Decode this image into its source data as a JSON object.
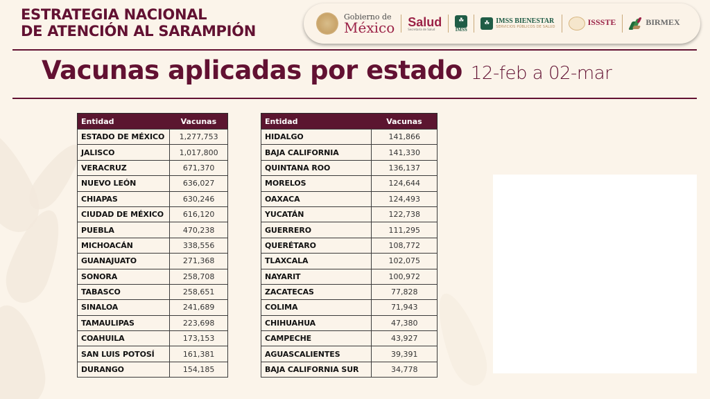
{
  "header": {
    "title_line1": "ESTRATEGIA NACIONAL",
    "title_line2": "DE ATENCIÓN AL SARAMPIÓN",
    "logos": {
      "gobierno_small": "Gobierno de",
      "gobierno_big": "México",
      "salud_big": "Salud",
      "salud_small": "Secretaría de Salud",
      "imss": "IMSS",
      "imss_bienestar_big": "IMSS BIENESTAR",
      "imss_bienestar_small": "SERVICIOS PÚBLICOS DE SALUD",
      "issste": "ISSSTE",
      "birmex": "BIRMEX"
    }
  },
  "page": {
    "title": "Vacunas aplicadas por estado",
    "date_range": "12-feb a 02-mar"
  },
  "colors": {
    "brand_primary": "#621132",
    "header_row": "#5b1630",
    "background": "#fbf4ea"
  },
  "table_left": {
    "headers": [
      "Entidad",
      "Vacunas"
    ],
    "rows": [
      {
        "entidad": "ESTADO DE MÉXICO",
        "vacunas": "1,277,753"
      },
      {
        "entidad": "JALISCO",
        "vacunas": "1,017,800"
      },
      {
        "entidad": "VERACRUZ",
        "vacunas": "671,370"
      },
      {
        "entidad": "NUEVO LEÓN",
        "vacunas": "636,027"
      },
      {
        "entidad": "CHIAPAS",
        "vacunas": "630,246"
      },
      {
        "entidad": "CIUDAD DE MÉXICO",
        "vacunas": "616,120"
      },
      {
        "entidad": "PUEBLA",
        "vacunas": "470,238"
      },
      {
        "entidad": "MICHOACÁN",
        "vacunas": "338,556"
      },
      {
        "entidad": "GUANAJUATO",
        "vacunas": "271,368"
      },
      {
        "entidad": "SONORA",
        "vacunas": "258,708"
      },
      {
        "entidad": "TABASCO",
        "vacunas": "258,651"
      },
      {
        "entidad": "SINALOA",
        "vacunas": "241,689"
      },
      {
        "entidad": "TAMAULIPAS",
        "vacunas": "223,698"
      },
      {
        "entidad": "COAHUILA",
        "vacunas": "173,153"
      },
      {
        "entidad": "SAN LUIS POTOSÍ",
        "vacunas": "161,381"
      },
      {
        "entidad": "DURANGO",
        "vacunas": "154,185"
      }
    ]
  },
  "table_right": {
    "headers": [
      "Entidad",
      "Vacunas"
    ],
    "rows": [
      {
        "entidad": "HIDALGO",
        "vacunas": "141,866"
      },
      {
        "entidad": "BAJA CALIFORNIA",
        "vacunas": "141,330"
      },
      {
        "entidad": "QUINTANA ROO",
        "vacunas": "136,137"
      },
      {
        "entidad": "MORELOS",
        "vacunas": "124,644"
      },
      {
        "entidad": "OAXACA",
        "vacunas": "124,493"
      },
      {
        "entidad": "YUCATÁN",
        "vacunas": "122,738"
      },
      {
        "entidad": "GUERRERO",
        "vacunas": "111,295"
      },
      {
        "entidad": "QUERÉTARO",
        "vacunas": "108,772"
      },
      {
        "entidad": "TLAXCALA",
        "vacunas": "102,075"
      },
      {
        "entidad": "NAYARIT",
        "vacunas": "100,972"
      },
      {
        "entidad": "ZACATECAS",
        "vacunas": "77,828"
      },
      {
        "entidad": "COLIMA",
        "vacunas": "71,943"
      },
      {
        "entidad": "CHIHUAHUA",
        "vacunas": "47,380"
      },
      {
        "entidad": "CAMPECHE",
        "vacunas": "43,927"
      },
      {
        "entidad": "AGUASCALIENTES",
        "vacunas": "39,391"
      },
      {
        "entidad": "BAJA CALIFORNIA SUR",
        "vacunas": "34,778"
      }
    ]
  }
}
